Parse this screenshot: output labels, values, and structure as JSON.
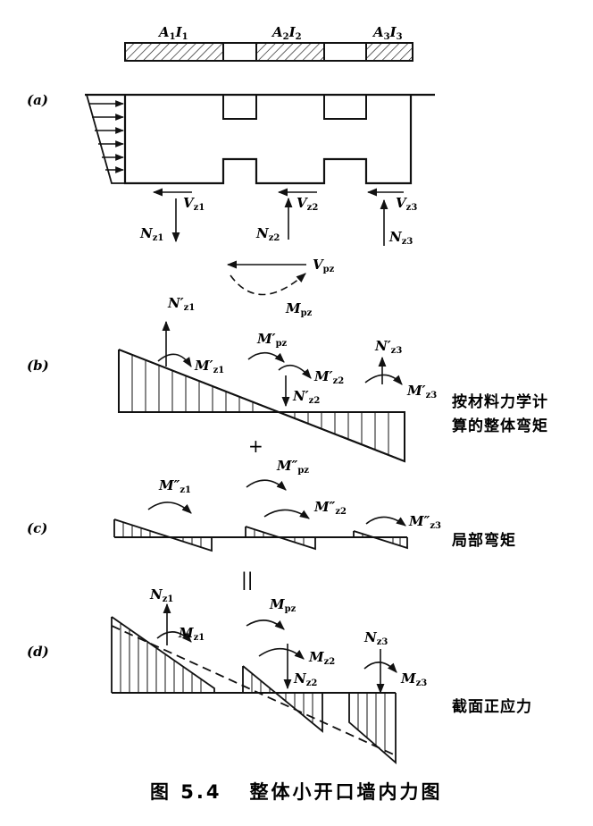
{
  "beam_labels": [
    {
      "main": "A",
      "sub1": "1",
      "mid": "I",
      "sub2": "1"
    },
    {
      "main": "A",
      "sub1": "2",
      "mid": "I",
      "sub2": "2"
    },
    {
      "main": "A",
      "sub1": "3",
      "mid": "I",
      "sub2": "3"
    }
  ],
  "panel_a": {
    "tag": "(a)",
    "forces": [
      {
        "V": "V",
        "V_sub": "z1",
        "N": "N",
        "N_sub": "z1"
      },
      {
        "V": "V",
        "V_sub": "z2",
        "N": "N",
        "N_sub": "z2"
      },
      {
        "V": "V",
        "V_sub": "z3",
        "N": "N",
        "N_sub": "z3"
      }
    ],
    "Vp": {
      "main": "V",
      "sub": "pz"
    },
    "Mp": {
      "main": "M",
      "sub": "pz"
    }
  },
  "panel_b": {
    "tag": "(b)",
    "N1": {
      "main": "N′",
      "sub": "z1"
    },
    "M1": {
      "main": "M′",
      "sub": "z1"
    },
    "Mp": {
      "main": "M′",
      "sub": "pz"
    },
    "M2": {
      "main": "M′",
      "sub": "z2"
    },
    "N2": {
      "main": "N′",
      "sub": "z2"
    },
    "N3": {
      "main": "N′",
      "sub": "z3"
    },
    "M3": {
      "main": "M′",
      "sub": "z3"
    },
    "caption_line1": "按材料力学计",
    "caption_line2": "算的整体弯矩"
  },
  "plus_sign": "+",
  "panel_c": {
    "tag": "(c)",
    "M1": {
      "main": "M″",
      "sub": "z1"
    },
    "Mp": {
      "main": "M″",
      "sub": "pz"
    },
    "M2": {
      "main": "M″",
      "sub": "z2"
    },
    "M3": {
      "main": "M″",
      "sub": "z3"
    },
    "caption": "局部弯矩"
  },
  "equals_sign": "||",
  "panel_d": {
    "tag": "(d)",
    "N1": {
      "main": "N",
      "sub": "z1"
    },
    "M1": {
      "main": "M",
      "sub": "z1"
    },
    "Mp": {
      "main": "M",
      "sub": "pz"
    },
    "M2": {
      "main": "M",
      "sub": "z2"
    },
    "N2": {
      "main": "N",
      "sub": "z2"
    },
    "N3": {
      "main": "N",
      "sub": "z3"
    },
    "M3": {
      "main": "M",
      "sub": "z3"
    },
    "caption": "截面正应力"
  },
  "figure_caption": "图 5.4   整体小开口墙内力图"
}
